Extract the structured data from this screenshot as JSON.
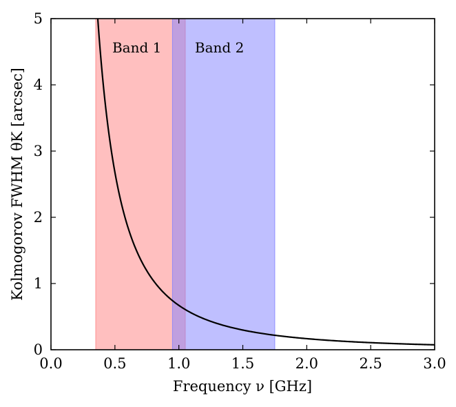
{
  "chart_data": {
    "type": "line",
    "title": "",
    "xlabel": "Frequency ν [GHz]",
    "ylabel": "Kolmogorov FWHM θK [arcsec]",
    "xlim": [
      0.0,
      3.0
    ],
    "ylim": [
      0,
      5
    ],
    "xticks": [
      0.0,
      0.5,
      1.0,
      1.5,
      2.0,
      2.5,
      3.0
    ],
    "xtick_labels": [
      "0.0",
      "0.5",
      "1.0",
      "1.5",
      "2.0",
      "2.5",
      "3.0"
    ],
    "yticks": [
      0,
      1,
      2,
      3,
      4,
      5
    ],
    "ytick_labels": [
      "0",
      "1",
      "2",
      "3",
      "4",
      "5"
    ],
    "grid": false,
    "series": [
      {
        "name": "Kolmogorov FWHM",
        "color": "#000000",
        "x": [
          0.37,
          0.4,
          0.45,
          0.5,
          0.55,
          0.6,
          0.65,
          0.7,
          0.75,
          0.8,
          0.9,
          1.0,
          1.1,
          1.2,
          1.4,
          1.6,
          1.8,
          2.0,
          2.2,
          2.5,
          2.8,
          3.0
        ],
        "y": [
          4.89,
          4.18,
          3.3,
          2.67,
          2.21,
          1.86,
          1.58,
          1.36,
          1.19,
          1.04,
          0.82,
          0.67,
          0.55,
          0.46,
          0.34,
          0.26,
          0.21,
          0.17,
          0.14,
          0.11,
          0.085,
          0.074
        ]
      }
    ],
    "bands": [
      {
        "name": "Band 1",
        "label": "Band 1",
        "x0": 0.35,
        "x1": 1.05,
        "color": "#ff7f7f",
        "opacity": 0.5
      },
      {
        "name": "Band 2",
        "label": "Band 2",
        "x0": 0.95,
        "x1": 1.75,
        "color": "#7f7fff",
        "opacity": 0.5
      }
    ]
  }
}
